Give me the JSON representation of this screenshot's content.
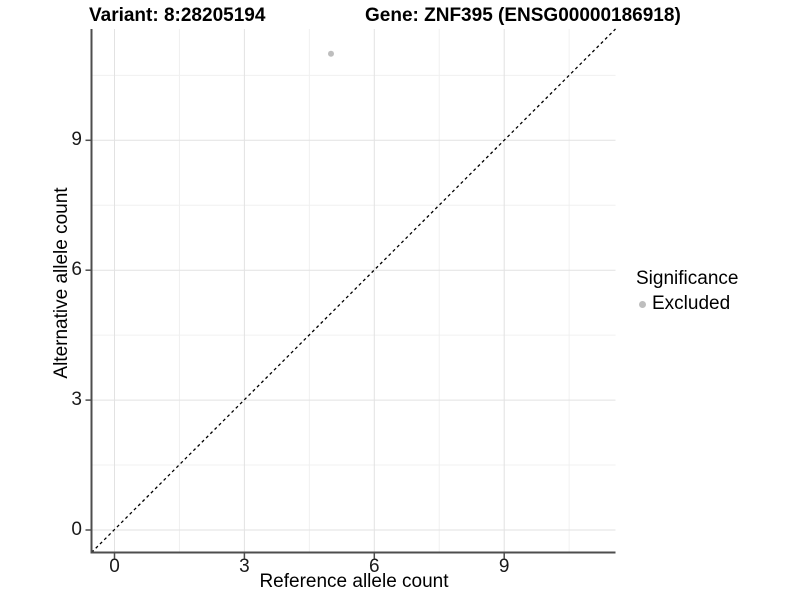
{
  "title": {
    "variant": "Variant: 8:28205194",
    "gene": "Gene: ZNF395 (ENSG00000186918)"
  },
  "chart_data": {
    "type": "scatter",
    "title": "Variant: 8:28205194   Gene: ZNF395 (ENSG00000186918)",
    "xlabel": "Reference allele count",
    "ylabel": "Alternative allele count",
    "xlim": [
      -0.55,
      11.55
    ],
    "ylim": [
      -0.55,
      11.55
    ],
    "x_ticks": [
      0,
      3,
      6,
      9
    ],
    "y_ticks": [
      0,
      3,
      6,
      9
    ],
    "x_minor_ticks": [
      1.5,
      4.5,
      7.5,
      10.5
    ],
    "y_minor_ticks": [
      1.5,
      4.5,
      7.5,
      10.5
    ],
    "grid": true,
    "series": [
      {
        "name": "Excluded",
        "color": "#bebebe",
        "points": [
          {
            "x": 5,
            "y": 11
          }
        ]
      }
    ],
    "reference_line": {
      "type": "identity",
      "equation": "y = x",
      "style": "dashed",
      "color": "#000000"
    },
    "legend": {
      "title": "Significance",
      "position": "right",
      "items": [
        {
          "label": "Excluded",
          "color": "#bebebe"
        }
      ]
    }
  },
  "colors": {
    "background": "#ffffff",
    "axis_line": "#4d4d4d",
    "tick_mark": "#4d4d4d",
    "major_grid": "#e2e2e2",
    "minor_grid": "#f0f0f0",
    "point": "#bebebe",
    "text": "#000000"
  }
}
